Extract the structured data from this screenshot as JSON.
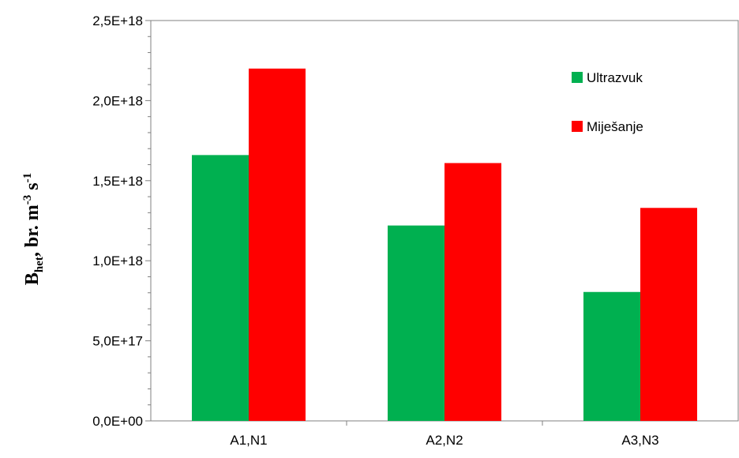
{
  "chart_data": {
    "type": "bar",
    "categories": [
      "A1,N1",
      "A2,N2",
      "A3,N3"
    ],
    "series": [
      {
        "name": "Ultrazvuk",
        "color": "#00b050",
        "values": [
          1.66e+18,
          1.22e+18,
          8.05e+17
        ]
      },
      {
        "name": "Miješanje",
        "color": "#ff0000",
        "values": [
          2.2e+18,
          1.61e+18,
          1.33e+18
        ]
      }
    ],
    "ylim": [
      0,
      2.5e+18
    ],
    "yticks": [
      {
        "value": 0,
        "label": "0,0E+00"
      },
      {
        "value": 5e+17,
        "label": "5,0E+17"
      },
      {
        "value": 1e+18,
        "label": "1,0E+18"
      },
      {
        "value": 1.5e+18,
        "label": "1,5E+18"
      },
      {
        "value": 2e+18,
        "label": "2,0E+18"
      },
      {
        "value": 2.5e+18,
        "label": "2,5E+18"
      }
    ],
    "ylabel": {
      "main": "B",
      "sub": "het",
      "unit": ", br. m",
      "exp1": "-3",
      "unit2": " s",
      "exp2": "-1"
    },
    "xlabel": "",
    "title": "",
    "grid": false,
    "legend": "top-right"
  }
}
